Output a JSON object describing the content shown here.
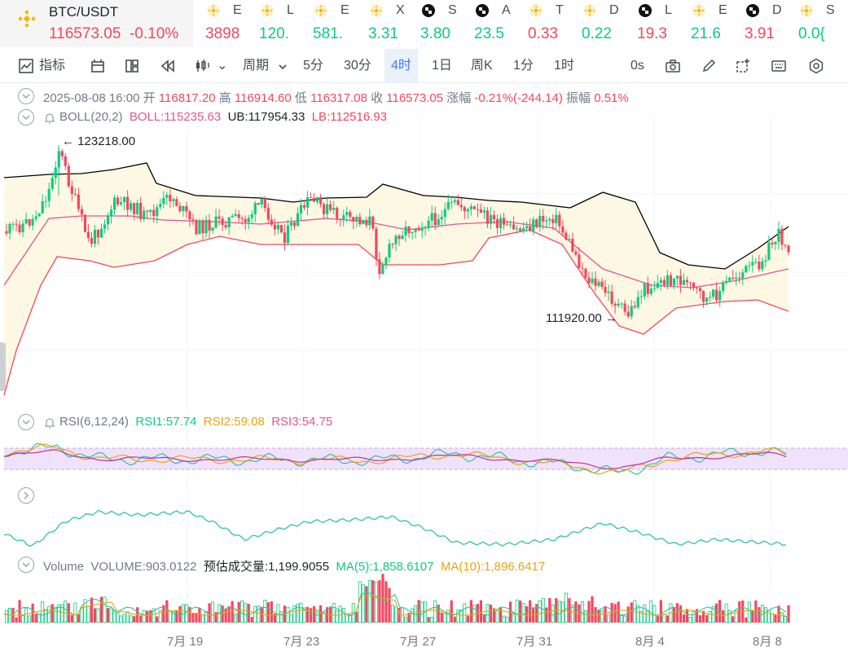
{
  "main_pair": {
    "symbol": "BTC/USDT",
    "price": "116573.05",
    "change": "-0.10%"
  },
  "tickers": [
    {
      "name": "E",
      "value": "3898",
      "icon": "bnb-icon",
      "dir": "dn"
    },
    {
      "name": "L",
      "value": "120.",
      "icon": "bnb-icon",
      "dir": "up"
    },
    {
      "name": "E",
      "value": "581.",
      "icon": "bnb-icon",
      "dir": "up"
    },
    {
      "name": "X",
      "value": "3.31",
      "icon": "bnb-icon",
      "dir": "up"
    },
    {
      "name": "S",
      "value": "3.80",
      "icon": "checker-icon",
      "dir": "up"
    },
    {
      "name": "A",
      "value": "23.5",
      "icon": "checker-icon",
      "dir": "up"
    },
    {
      "name": "T",
      "value": "0.33",
      "icon": "bnb-icon",
      "dir": "dn"
    },
    {
      "name": "D",
      "value": "0.22",
      "icon": "bnb-icon",
      "dir": "up"
    },
    {
      "name": "L",
      "value": "19.3",
      "icon": "checker-icon",
      "dir": "dn"
    },
    {
      "name": "E",
      "value": "21.6",
      "icon": "bnb-icon",
      "dir": "up"
    },
    {
      "name": "D",
      "value": "3.91",
      "icon": "checker-icon",
      "dir": "dn"
    },
    {
      "name": "S",
      "value": "0.0{",
      "icon": "bnb-icon",
      "dir": "up"
    }
  ],
  "toolbar": {
    "indicators": "指标",
    "period": "周期",
    "intervals": [
      "5分",
      "30分",
      "4时",
      "1日",
      "周K",
      "1分",
      "1时"
    ],
    "active_interval": "4时",
    "seconds": "0s"
  },
  "ohlc": {
    "datetime": "2025-08-08 16:00",
    "open_label": "开",
    "open": "116817.20",
    "high_label": "高",
    "high": "116914.60",
    "low_label": "低",
    "low": "116317.08",
    "close_label": "收",
    "close": "116573.05",
    "change_label": "涨幅",
    "change": "-0.21%(-244.14)",
    "amp_label": "振幅",
    "amp": "0.51%"
  },
  "boll": {
    "name": "BOLL(20,2)",
    "boll": "BOLL:115235.63",
    "ub": "UB:117954.33",
    "lb": "LB:112516.93"
  },
  "annotations": {
    "high": "123218.00",
    "low": "111920.00"
  },
  "rsi": {
    "name": "RSI(6,12,24)",
    "rsi1": "RSI1:57.74",
    "rsi2": "RSI2:59.08",
    "rsi3": "RSI3:54.75"
  },
  "volume": {
    "name": "Volume",
    "volume": "VOLUME:903.0122",
    "estimated": "预估成交量:1,199.9055",
    "ma5": "MA(5):1,858.6107",
    "ma10": "MA(10):1,896.6417"
  },
  "x_axis": [
    "7月 19",
    "7月 23",
    "7月 27",
    "7月 31",
    "8月 4",
    "8月 8"
  ],
  "colors": {
    "up": "#0ecb81",
    "down": "#f6465d",
    "ub_line": "#000000",
    "boll_line": "#e8538f",
    "lb_line": "#f6465d",
    "band_fill": "#fdf8e4",
    "rsi_band": "#f0e2fb",
    "accent": "#3d7ff5"
  }
}
